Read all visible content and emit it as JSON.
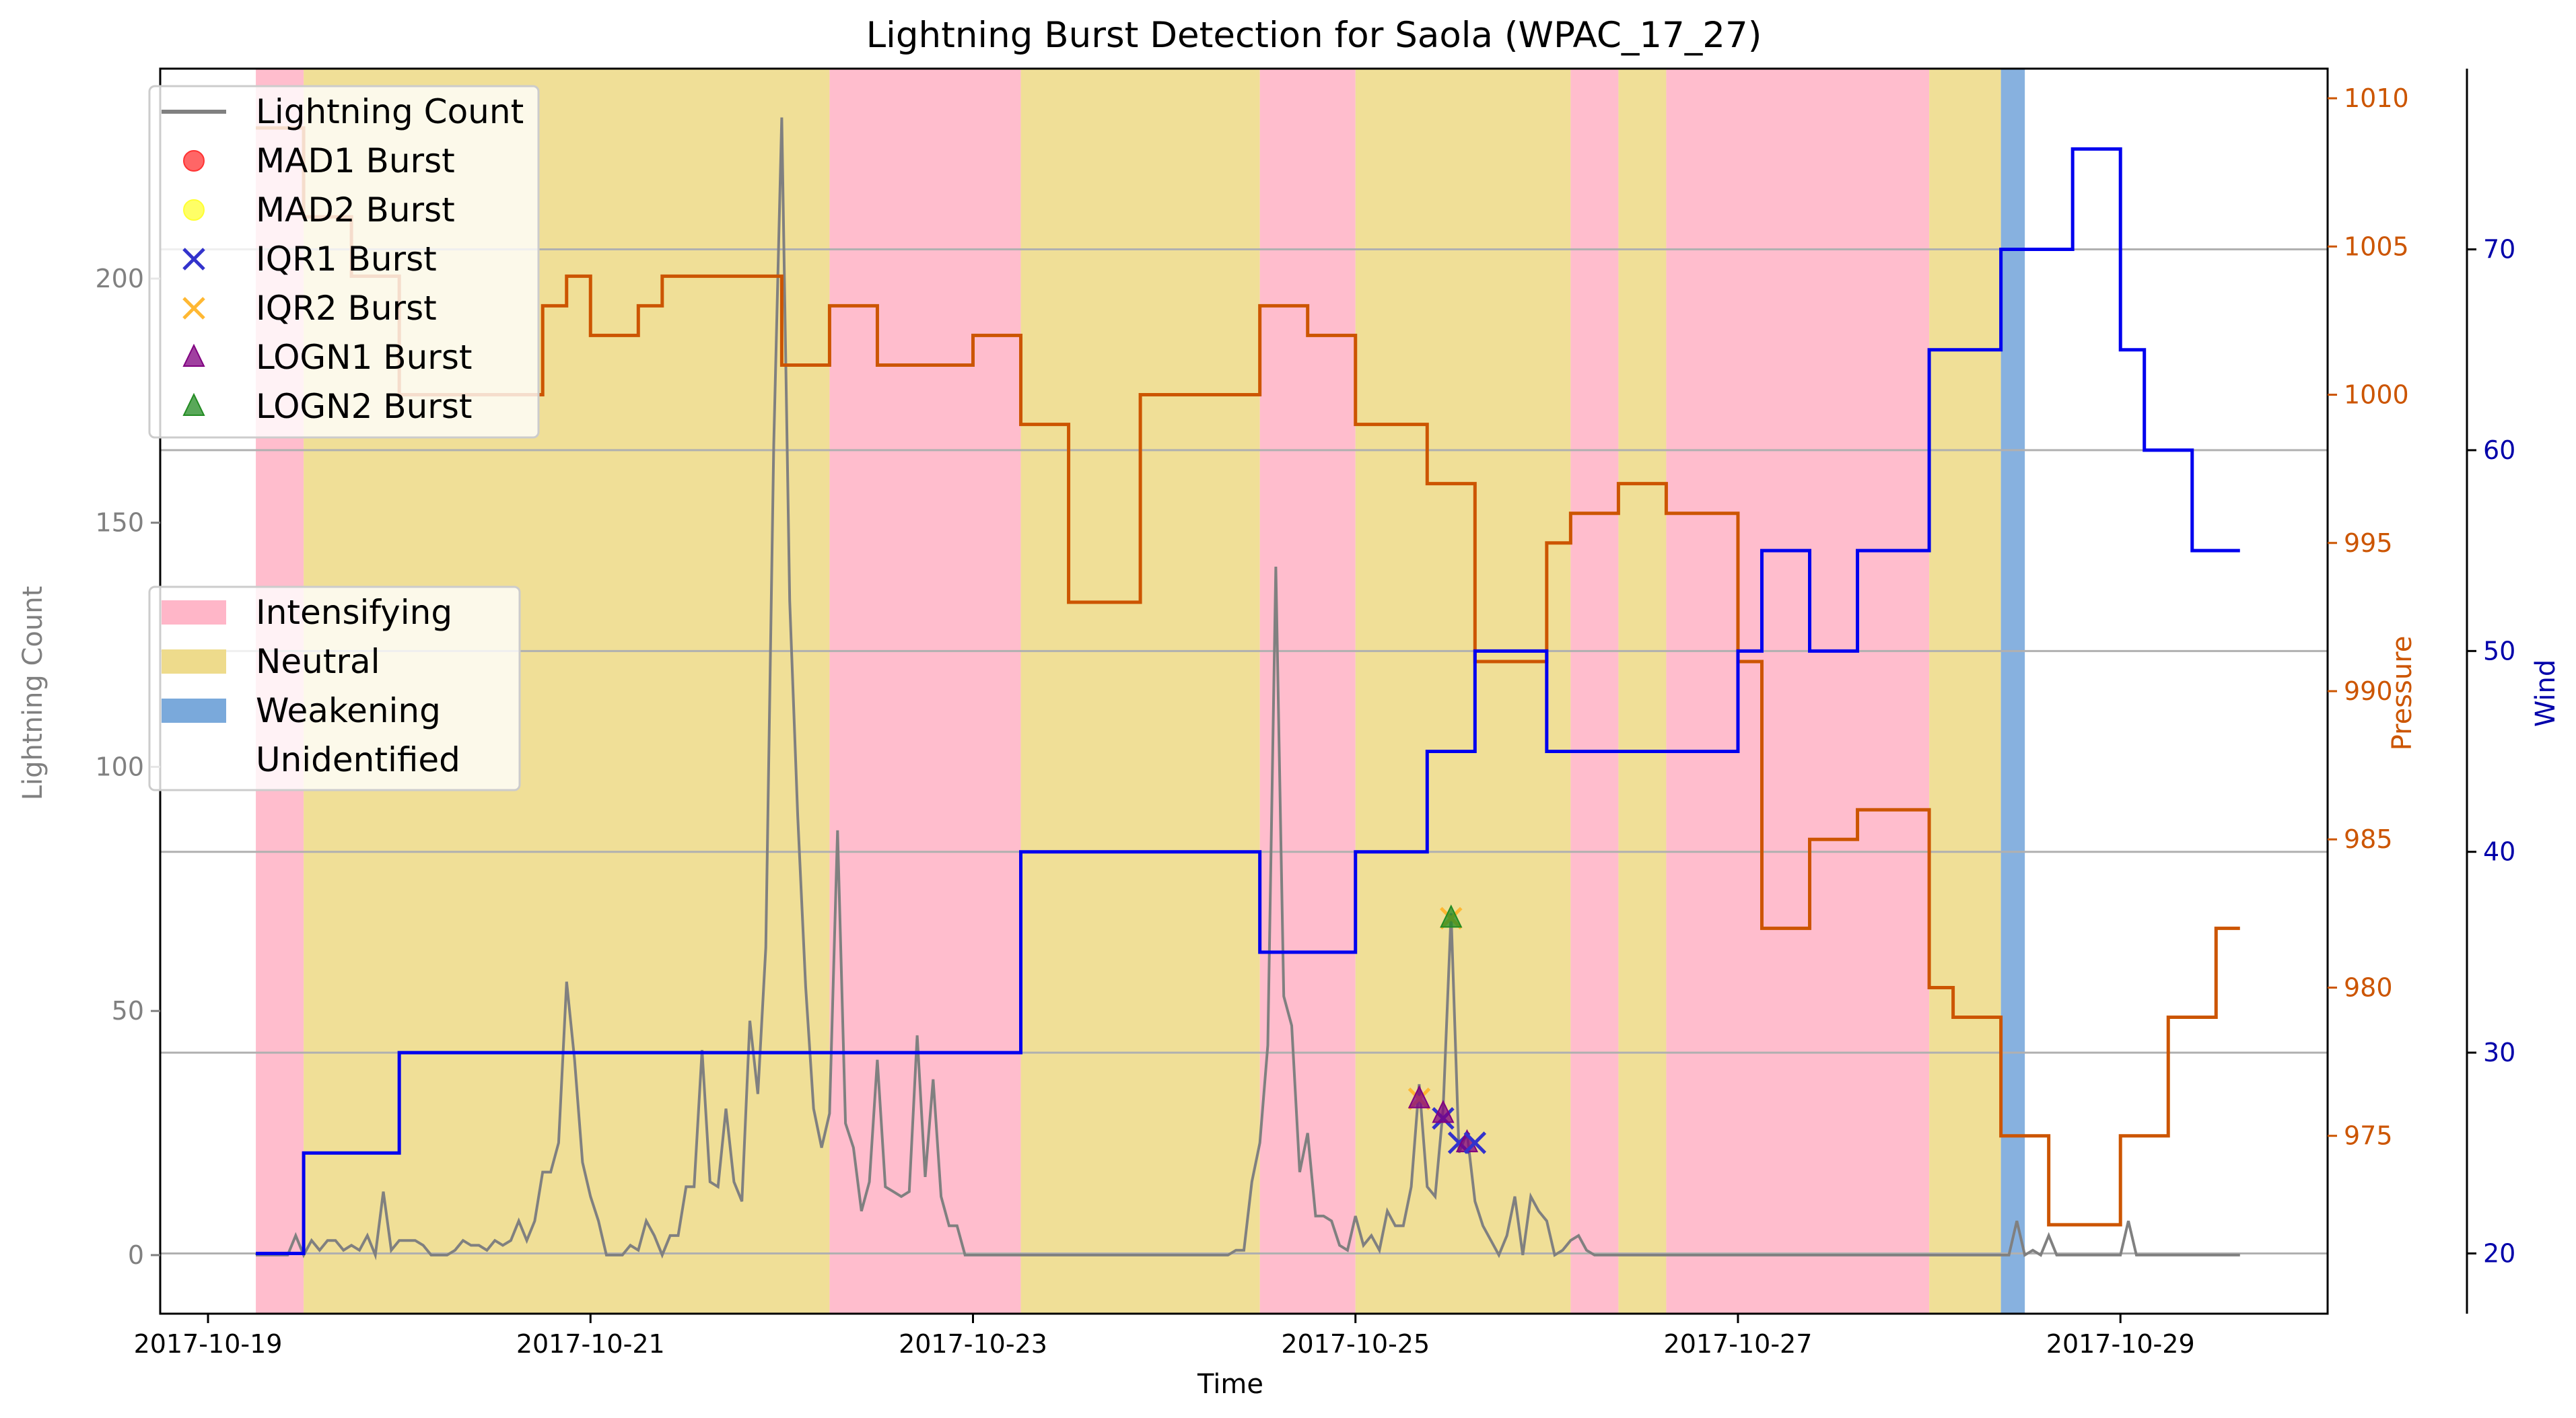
{
  "chart_data": {
    "type": "line",
    "title": "Lightning Burst Detection for Saola (WPAC_17_27)",
    "xlabel": "Time",
    "ylabel_left": "Lightning Count",
    "ylabel_pressure": "Pressure",
    "ylabel_wind": "Wind",
    "x_range": [
      "2017-10-18 18:00",
      "2017-10-30 02:00"
    ],
    "x_ticks": [
      {
        "date": "2017-10-19 00:00",
        "label": "2017-10-19"
      },
      {
        "date": "2017-10-21 00:00",
        "label": "2017-10-21"
      },
      {
        "date": "2017-10-23 00:00",
        "label": "2017-10-23"
      },
      {
        "date": "2017-10-25 00:00",
        "label": "2017-10-25"
      },
      {
        "date": "2017-10-27 00:00",
        "label": "2017-10-27"
      },
      {
        "date": "2017-10-29 00:00",
        "label": "2017-10-29"
      }
    ],
    "lightning_axis": {
      "ylim": [
        -12,
        243
      ],
      "ticks": [
        0,
        50,
        100,
        150,
        200
      ]
    },
    "pressure_axis": {
      "ylim": [
        969,
        1011
      ],
      "ticks": [
        975,
        980,
        985,
        990,
        995,
        1000,
        1005,
        1010
      ]
    },
    "wind_axis": {
      "ylim": [
        17,
        79
      ],
      "ticks": [
        20,
        30,
        40,
        50,
        60,
        70
      ]
    },
    "grid": "horizontal, wind axis",
    "colors": {
      "lightning": "#808080",
      "pressure": "#cc5500",
      "wind": "#0000ee",
      "intensifying": "#ffb6c8",
      "neutral": "#eedb8c",
      "weakening": "#7aa9db",
      "mad1": "#ff3333",
      "mad2": "#ffff33",
      "iqr1": "#3333cc",
      "iqr2": "#ffb833",
      "logn1": "#800080",
      "logn2": "#228b22"
    },
    "phases": [
      {
        "phase": "intensifying",
        "start": "2017-10-19 06:00",
        "end": "2017-10-19 12:00"
      },
      {
        "phase": "neutral",
        "start": "2017-10-19 12:00",
        "end": "2017-10-22 06:00"
      },
      {
        "phase": "intensifying",
        "start": "2017-10-22 06:00",
        "end": "2017-10-23 06:00"
      },
      {
        "phase": "neutral",
        "start": "2017-10-23 06:00",
        "end": "2017-10-24 12:00"
      },
      {
        "phase": "intensifying",
        "start": "2017-10-24 12:00",
        "end": "2017-10-25 00:00"
      },
      {
        "phase": "neutral",
        "start": "2017-10-25 00:00",
        "end": "2017-10-26 03:00"
      },
      {
        "phase": "intensifying",
        "start": "2017-10-26 03:00",
        "end": "2017-10-26 09:00"
      },
      {
        "phase": "neutral",
        "start": "2017-10-26 09:00",
        "end": "2017-10-26 15:00"
      },
      {
        "phase": "intensifying",
        "start": "2017-10-26 15:00",
        "end": "2017-10-28 00:00"
      },
      {
        "phase": "neutral",
        "start": "2017-10-28 00:00",
        "end": "2017-10-28 09:00"
      },
      {
        "phase": "weakening",
        "start": "2017-10-28 09:00",
        "end": "2017-10-28 12:00"
      }
    ],
    "pressure_series": {
      "name": "Pressure",
      "points": [
        [
          "2017-10-19 06:00",
          1009
        ],
        [
          "2017-10-19 12:00",
          1006
        ],
        [
          "2017-10-19 18:00",
          1004
        ],
        [
          "2017-10-20 00:00",
          1000
        ],
        [
          "2017-10-20 18:00",
          1003
        ],
        [
          "2017-10-20 21:00",
          1004
        ],
        [
          "2017-10-21 00:00",
          1002
        ],
        [
          "2017-10-21 06:00",
          1003
        ],
        [
          "2017-10-21 09:00",
          1004
        ],
        [
          "2017-10-22 00:00",
          1001
        ],
        [
          "2017-10-22 06:00",
          1003
        ],
        [
          "2017-10-22 12:00",
          1001
        ],
        [
          "2017-10-23 00:00",
          1002
        ],
        [
          "2017-10-23 06:00",
          999
        ],
        [
          "2017-10-23 12:00",
          993
        ],
        [
          "2017-10-23 21:00",
          1000
        ],
        [
          "2017-10-24 12:00",
          1003
        ],
        [
          "2017-10-24 18:00",
          1002
        ],
        [
          "2017-10-25 00:00",
          999
        ],
        [
          "2017-10-25 09:00",
          997
        ],
        [
          "2017-10-25 15:00",
          991
        ],
        [
          "2017-10-26 00:00",
          995
        ],
        [
          "2017-10-26 03:00",
          996
        ],
        [
          "2017-10-26 09:00",
          997
        ],
        [
          "2017-10-26 15:00",
          996
        ],
        [
          "2017-10-27 00:00",
          991
        ],
        [
          "2017-10-27 03:00",
          982
        ],
        [
          "2017-10-27 09:00",
          985
        ],
        [
          "2017-10-27 15:00",
          986
        ],
        [
          "2017-10-28 00:00",
          980
        ],
        [
          "2017-10-28 03:00",
          979
        ],
        [
          "2017-10-28 09:00",
          975
        ],
        [
          "2017-10-28 15:00",
          972
        ],
        [
          "2017-10-29 00:00",
          975
        ],
        [
          "2017-10-29 06:00",
          979
        ],
        [
          "2017-10-29 12:00",
          982
        ],
        [
          "2017-10-29 15:00",
          982
        ]
      ]
    },
    "wind_series": {
      "name": "Wind",
      "points": [
        [
          "2017-10-19 06:00",
          20
        ],
        [
          "2017-10-19 12:00",
          25
        ],
        [
          "2017-10-20 00:00",
          30
        ],
        [
          "2017-10-23 06:00",
          40
        ],
        [
          "2017-10-24 12:00",
          35
        ],
        [
          "2017-10-25 00:00",
          40
        ],
        [
          "2017-10-25 09:00",
          45
        ],
        [
          "2017-10-25 15:00",
          50
        ],
        [
          "2017-10-26 00:00",
          45
        ],
        [
          "2017-10-27 00:00",
          50
        ],
        [
          "2017-10-27 03:00",
          55
        ],
        [
          "2017-10-27 09:00",
          50
        ],
        [
          "2017-10-27 15:00",
          55
        ],
        [
          "2017-10-28 00:00",
          65
        ],
        [
          "2017-10-28 09:00",
          70
        ],
        [
          "2017-10-28 18:00",
          75
        ],
        [
          "2017-10-29 00:00",
          65
        ],
        [
          "2017-10-29 03:00",
          60
        ],
        [
          "2017-10-29 09:00",
          55
        ],
        [
          "2017-10-29 15:00",
          55
        ]
      ]
    },
    "lightning_series": {
      "name": "Lightning Count",
      "end": "2017-10-29 15:00",
      "peaks": [
        [
          "2017-10-20 18:00",
          17
        ],
        [
          "2017-10-20 21:00",
          56
        ],
        [
          "2017-10-20 22:00",
          40
        ],
        [
          "2017-10-21 14:00",
          42
        ],
        [
          "2017-10-21 17:00",
          30
        ],
        [
          "2017-10-21 20:00",
          48
        ],
        [
          "2017-10-21 22:00",
          45
        ],
        [
          "2017-10-21 23:00",
          166
        ],
        [
          "2017-10-22 00:00",
          233
        ],
        [
          "2017-10-22 01:00",
          134
        ],
        [
          "2017-10-22 02:00",
          90
        ],
        [
          "2017-10-22 03:00",
          55
        ],
        [
          "2017-10-22 07:00",
          87
        ],
        [
          "2017-10-22 12:00",
          40
        ],
        [
          "2017-10-22 17:00",
          45
        ],
        [
          "2017-10-22 19:00",
          36
        ],
        [
          "2017-10-24 14:00",
          141
        ],
        [
          "2017-10-24 18:00",
          25
        ],
        [
          "2017-10-25 08:00",
          35
        ],
        [
          "2017-10-25 12:00",
          70
        ],
        [
          "2017-10-25 14:00",
          25
        ]
      ]
    },
    "bursts": [
      {
        "type": "iqr2",
        "date": "2017-10-25 08:00",
        "value": 32
      },
      {
        "type": "logn1",
        "date": "2017-10-25 08:00",
        "value": 32
      },
      {
        "type": "iqr1",
        "date": "2017-10-25 11:00",
        "value": 28
      },
      {
        "type": "logn1",
        "date": "2017-10-25 11:00",
        "value": 29
      },
      {
        "type": "iqr2",
        "date": "2017-10-25 12:00",
        "value": 69
      },
      {
        "type": "logn2",
        "date": "2017-10-25 12:00",
        "value": 69
      },
      {
        "type": "iqr1",
        "date": "2017-10-25 13:00",
        "value": 23
      },
      {
        "type": "logn1",
        "date": "2017-10-25 14:00",
        "value": 23
      },
      {
        "type": "iqr1",
        "date": "2017-10-25 15:00",
        "value": 23
      }
    ],
    "legend_series": [
      {
        "key": "lightning",
        "label": "Lightning Count",
        "marker": "line"
      },
      {
        "key": "mad1",
        "label": "MAD1 Burst",
        "marker": "circle"
      },
      {
        "key": "mad2",
        "label": "MAD2 Burst",
        "marker": "circle"
      },
      {
        "key": "iqr1",
        "label": "IQR1 Burst",
        "marker": "x"
      },
      {
        "key": "iqr2",
        "label": "IQR2 Burst",
        "marker": "x"
      },
      {
        "key": "logn1",
        "label": "LOGN1 Burst",
        "marker": "triangle"
      },
      {
        "key": "logn2",
        "label": "LOGN2 Burst",
        "marker": "triangle"
      }
    ],
    "legend_phases": [
      {
        "key": "intensifying",
        "label": "Intensifying"
      },
      {
        "key": "neutral",
        "label": "Neutral"
      },
      {
        "key": "weakening",
        "label": "Weakening"
      },
      {
        "key": "unidentified",
        "label": "Unidentified"
      }
    ],
    "legend_position": "upper-left and center-left"
  }
}
